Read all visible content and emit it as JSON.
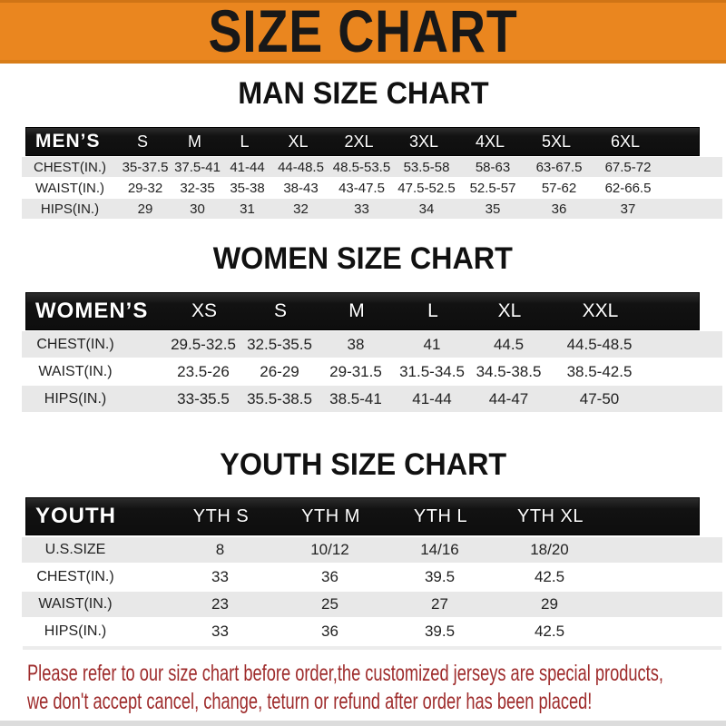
{
  "banner": {
    "title": "SIZE CHART"
  },
  "sections": [
    {
      "id": "men",
      "heading": "MAN SIZE CHART",
      "label": "MEN’S",
      "sizes": [
        "S",
        "M",
        "L",
        "XL",
        "2XL",
        "3XL",
        "4XL",
        "5XL",
        "6XL"
      ],
      "rows": [
        {
          "label": "CHEST(IN.)",
          "values": [
            "35-37.5",
            "37.5-41",
            "41-44",
            "44-48.5",
            "48.5-53.5",
            "53.5-58",
            "58-63",
            "63-67.5",
            "67.5-72"
          ]
        },
        {
          "label": "WAIST(IN.)",
          "values": [
            "29-32",
            "32-35",
            "35-38",
            "38-43",
            "43-47.5",
            "47.5-52.5",
            "52.5-57",
            "57-62",
            "62-66.5"
          ]
        },
        {
          "label": "HIPS(IN.)",
          "values": [
            "29",
            "30",
            "31",
            "32",
            "33",
            "34",
            "35",
            "36",
            "37"
          ]
        }
      ]
    },
    {
      "id": "women",
      "heading": "WOMEN SIZE CHART",
      "label": "WOMEN’S",
      "sizes": [
        "XS",
        "S",
        "M",
        "L",
        "XL",
        "XXL"
      ],
      "rows": [
        {
          "label": "CHEST(IN.)",
          "values": [
            "29.5-32.5",
            "32.5-35.5",
            "38",
            "41",
            "44.5",
            "44.5-48.5"
          ]
        },
        {
          "label": "WAIST(IN.)",
          "values": [
            "23.5-26",
            "26-29",
            "29-31.5",
            "31.5-34.5",
            "34.5-38.5",
            "38.5-42.5"
          ]
        },
        {
          "label": "HIPS(IN.)",
          "values": [
            "33-35.5",
            "35.5-38.5",
            "38.5-41",
            "41-44",
            "44-47",
            "47-50"
          ]
        }
      ]
    },
    {
      "id": "youth",
      "heading": "YOUTH SIZE CHART",
      "label": "YOUTH",
      "sizes": [
        "YTH S",
        "YTH M",
        "YTH L",
        "YTH XL"
      ],
      "rows": [
        {
          "label": "U.S.SIZE",
          "values": [
            "8",
            "10/12",
            "14/16",
            "18/20"
          ]
        },
        {
          "label": "CHEST(IN.)",
          "values": [
            "33",
            "36",
            "39.5",
            "42.5"
          ]
        },
        {
          "label": "WAIST(IN.)",
          "values": [
            "23",
            "25",
            "27",
            "29"
          ]
        },
        {
          "label": "HIPS(IN.)",
          "values": [
            "33",
            "36",
            "39.5",
            "42.5"
          ]
        }
      ]
    }
  ],
  "footer": {
    "line1": "Please refer to our size chart before order,the customized jerseys are special products,",
    "line2": "we don't accept cancel, change, teturn or refund after order has been placed!"
  },
  "colors": {
    "banner_orange": "#EA861F",
    "banner_edge_dark": "#CF7416",
    "bar_black": "#141414",
    "row_gray": "#E8E8E8",
    "data_text": "#222222",
    "footer_red": "#9E2B2B",
    "bottom_strip_gray": "#DCDCDC"
  }
}
